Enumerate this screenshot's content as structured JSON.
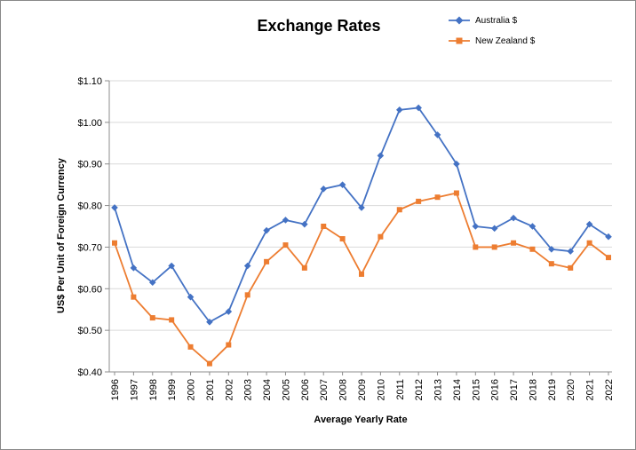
{
  "chart_data": {
    "type": "line",
    "title": "Exchange Rates",
    "xlabel": "Average Yearly Rate",
    "ylabel": "US$ Per Unit of Foreign Currency",
    "categories": [
      "1996",
      "1997",
      "1998",
      "1999",
      "2000",
      "2001",
      "2002",
      "2003",
      "2004",
      "2005",
      "2006",
      "2007",
      "2008",
      "2009",
      "2010",
      "2011",
      "2012",
      "2013",
      "2014",
      "2015",
      "2016",
      "2017",
      "2018",
      "2019",
      "2020",
      "2021",
      "2022"
    ],
    "series": [
      {
        "name": "Australia $",
        "color": "#4472C4",
        "marker": "diamond",
        "values": [
          0.795,
          0.65,
          0.615,
          0.655,
          0.58,
          0.52,
          0.545,
          0.655,
          0.74,
          0.765,
          0.755,
          0.84,
          0.85,
          0.795,
          0.92,
          1.03,
          1.035,
          0.97,
          0.9,
          0.75,
          0.745,
          0.77,
          0.75,
          0.695,
          0.69,
          0.755,
          0.725
        ]
      },
      {
        "name": "New Zealand $",
        "color": "#ED7D31",
        "marker": "square",
        "values": [
          0.71,
          0.58,
          0.53,
          0.525,
          0.46,
          0.42,
          0.465,
          0.585,
          0.665,
          0.705,
          0.65,
          0.75,
          0.72,
          0.635,
          0.725,
          0.79,
          0.81,
          0.82,
          0.83,
          0.7,
          0.7,
          0.71,
          0.695,
          0.66,
          0.65,
          0.71,
          0.675
        ]
      }
    ],
    "ylim": [
      0.4,
      1.1
    ],
    "ytick_step": 0.1,
    "ytick_labels": [
      "$0.40",
      "$0.50",
      "$0.60",
      "$0.70",
      "$0.80",
      "$0.90",
      "$1.00",
      "$1.10"
    ],
    "grid": true,
    "legend_position": "top-right",
    "colors": {
      "gridline": "#D9D9D9",
      "axis": "#8C8C8C",
      "text": "#000000",
      "border": "#898989"
    }
  }
}
